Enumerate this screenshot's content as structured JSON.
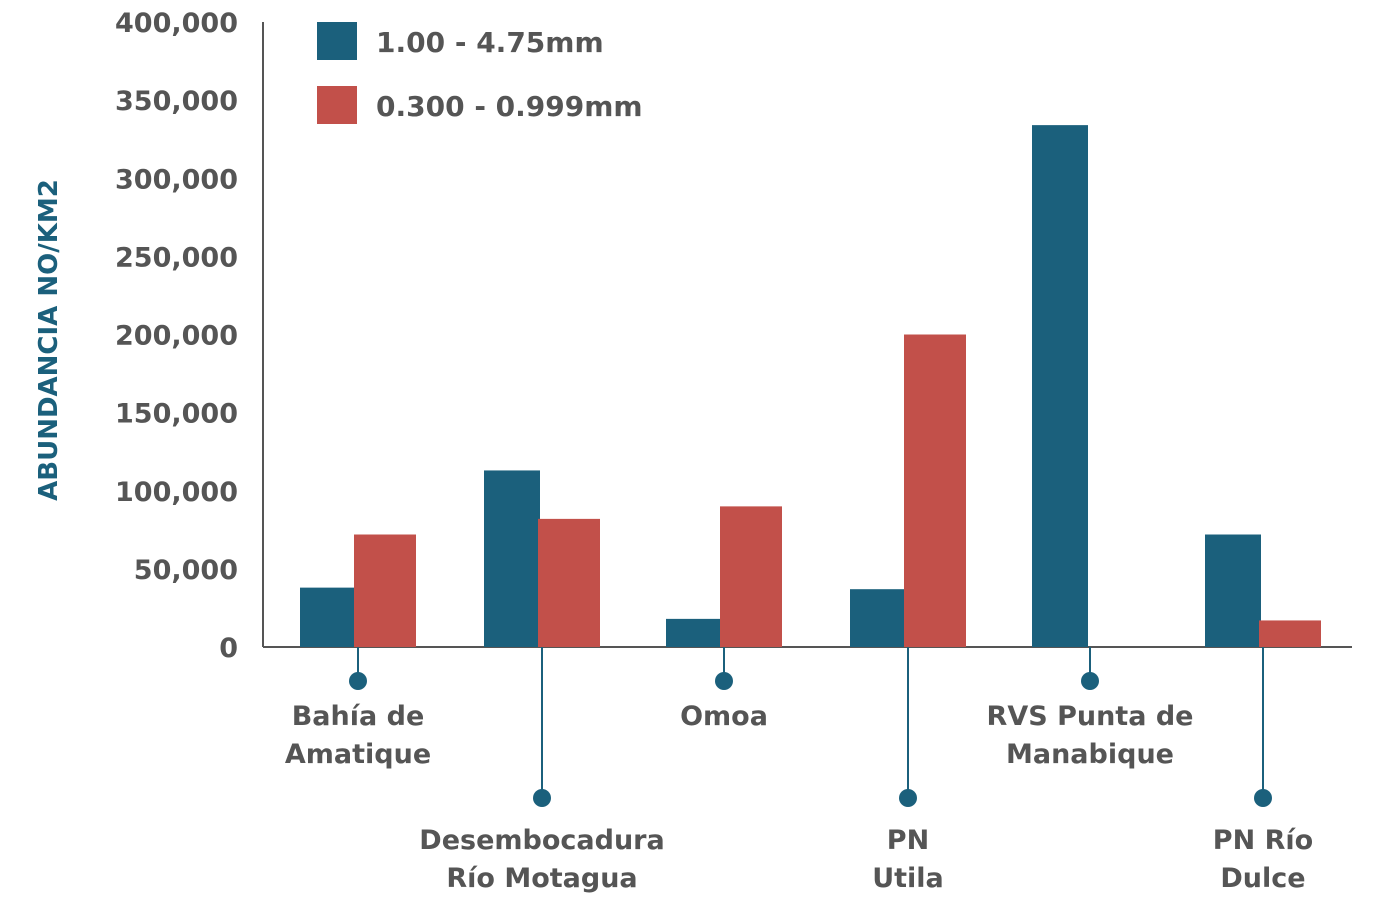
{
  "chart_data": {
    "type": "bar",
    "ylabel": "ABUNDANCIA NO/KM2",
    "ylim": [
      0,
      400000
    ],
    "yticks": [
      "0",
      "50,000",
      "100,000",
      "150,000",
      "200,000",
      "250,000",
      "300,000",
      "350,000",
      "400,000"
    ],
    "categories": [
      [
        "Bahía de",
        "Amatique"
      ],
      [
        "Desembocadura",
        "Río Motagua"
      ],
      [
        "Omoa"
      ],
      [
        "PN",
        "Utila"
      ],
      [
        "RVS Punta de",
        "Manabique"
      ],
      [
        "PN Río",
        "Dulce"
      ]
    ],
    "series": [
      {
        "name": "1.00 - 4.75mm",
        "color": "#1b607c",
        "values": [
          38000,
          113000,
          18000,
          37000,
          334000,
          72000
        ]
      },
      {
        "name": "0.300 - 0.999mm",
        "color": "#c2504a",
        "values": [
          72000,
          82000,
          90000,
          200000,
          0,
          17000
        ]
      }
    ],
    "label_rows": [
      "upper",
      "lower",
      "upper",
      "lower",
      "upper",
      "lower"
    ],
    "legend_position": "top-left",
    "grid": false,
    "axis_title_color": "#1b607c",
    "text_color": "#555555",
    "axis_color": "#555555",
    "connector_color": "#1b607c"
  }
}
